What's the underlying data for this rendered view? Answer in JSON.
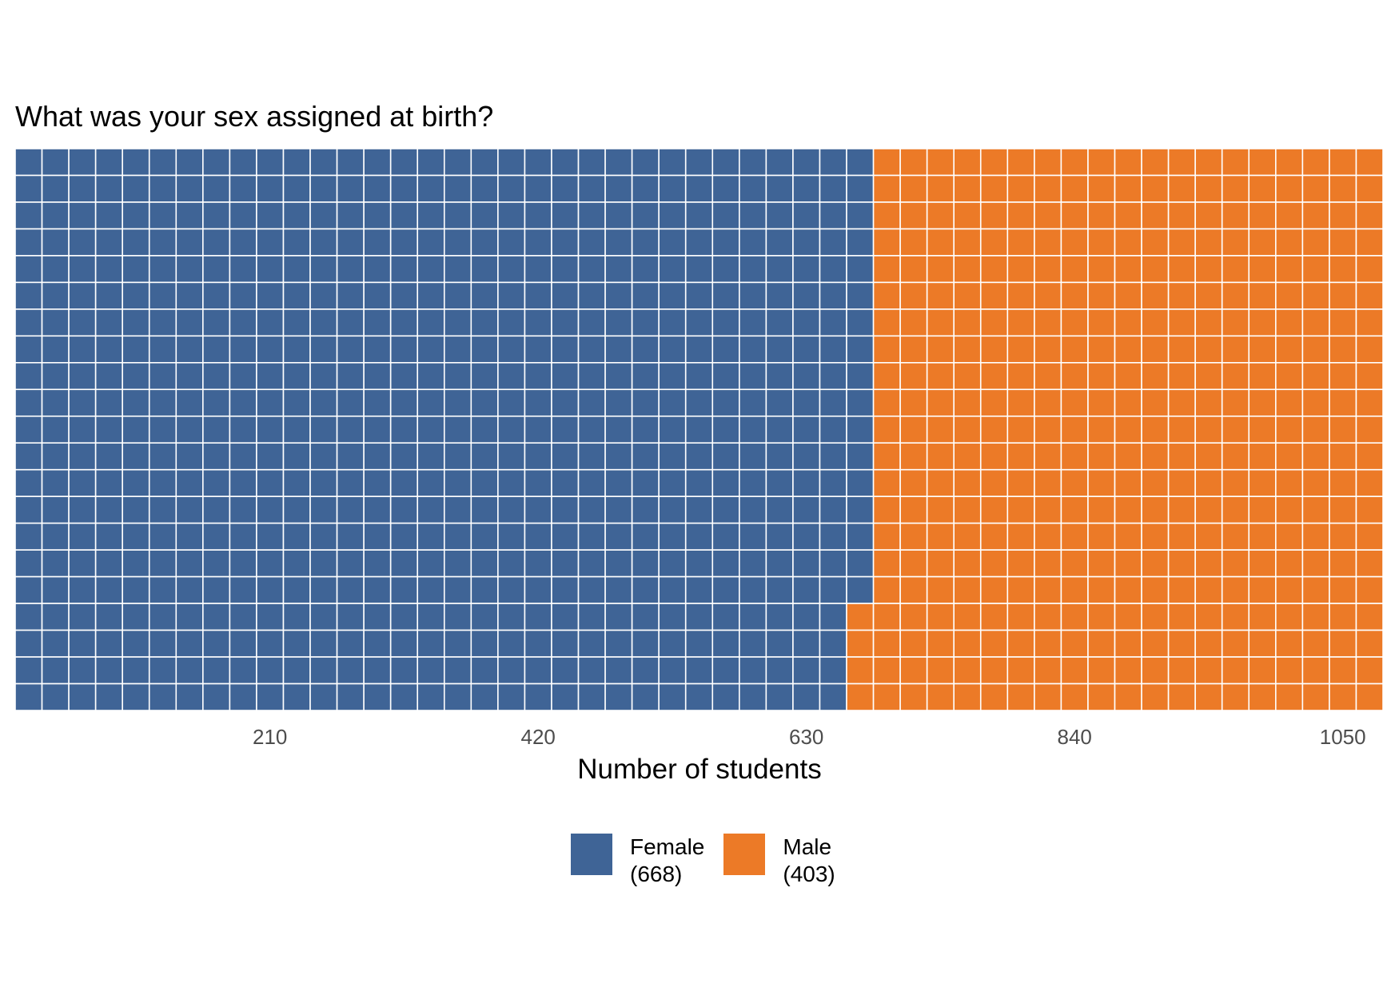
{
  "chart_data": {
    "type": "waffle",
    "title": "What was your sex assigned at birth?",
    "xlabel": "Number of students",
    "ylabel": "",
    "x_ticks": [
      "210",
      "420",
      "630",
      "840",
      "1050"
    ],
    "x_tick_values": [
      210,
      420,
      630,
      840,
      1050
    ],
    "grid": false,
    "legend_position": "bottom",
    "cells_per_column": 21,
    "series": [
      {
        "name": "Female",
        "count_label": "(668)",
        "value": 668,
        "color": "#3f6496"
      },
      {
        "name": "Male",
        "count_label": "(403)",
        "value": 403,
        "color": "#ec7a27"
      }
    ]
  }
}
